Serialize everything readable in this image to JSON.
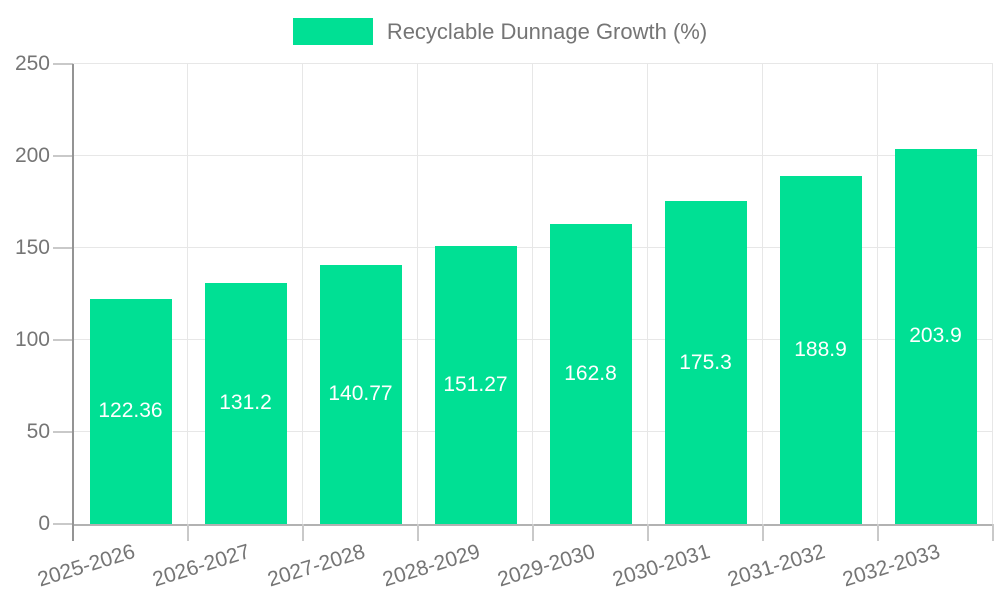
{
  "chart_data": {
    "type": "bar",
    "title": "Recyclable Dunnage Growth (%)",
    "categories": [
      "2025-2026",
      "2026-2027",
      "2027-2028",
      "2028-2029",
      "2029-2030",
      "2030-2031",
      "2031-2032",
      "2032-2033"
    ],
    "values": [
      122.36,
      131.2,
      140.77,
      151.27,
      162.8,
      175.3,
      188.9,
      203.9
    ],
    "value_labels": [
      "122.36",
      "131.2",
      "140.77",
      "151.27",
      "162.8",
      "175.3",
      "188.9",
      "203.9"
    ],
    "xlabel": "",
    "ylabel": "",
    "ylim": [
      0,
      250
    ],
    "yticks": [
      0,
      50,
      100,
      150,
      200,
      250
    ],
    "grid": true,
    "legend_position": "top-center",
    "colors": {
      "bar": "#00e094",
      "gridline": "#e7e7e7",
      "axis_line": "#949494",
      "zero_line": "#b2b2b2",
      "tick": "#c9c9c9",
      "axis_text": "#757575",
      "value_label_text": "#ffffff",
      "background": "#ffffff"
    }
  }
}
